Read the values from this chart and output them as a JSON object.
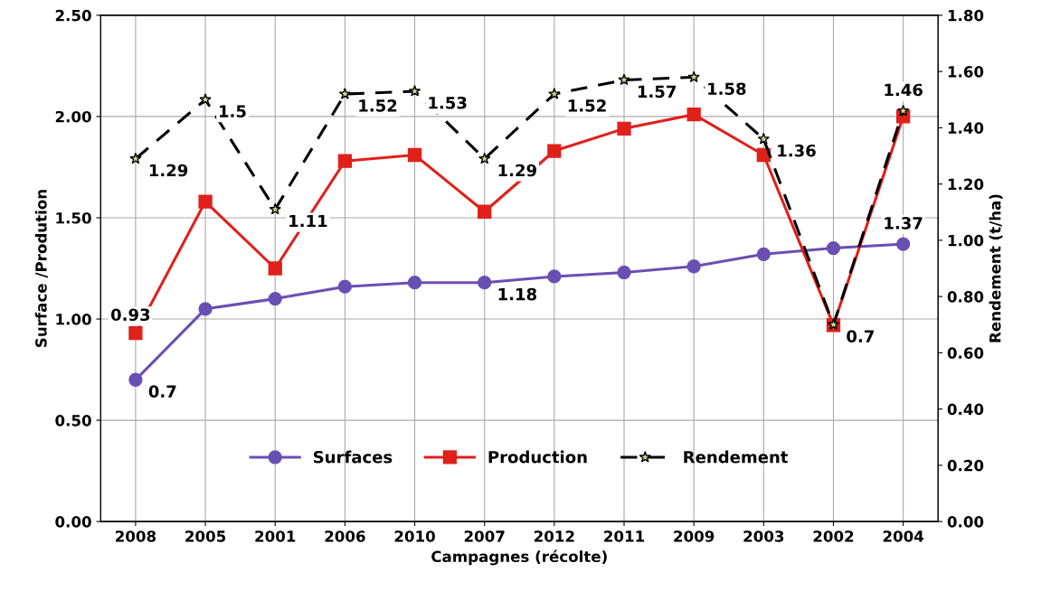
{
  "chart_data": {
    "type": "line",
    "xlabel": "Campagnes (récolte)",
    "ylabel": "Surface /Prodution",
    "y2label": "Rendement (t/ha)",
    "categories": [
      "2008",
      "2005",
      "2001",
      "2006",
      "2010",
      "2007",
      "2012",
      "2011",
      "2009",
      "2003",
      "2002",
      "2004"
    ],
    "series": [
      {
        "name": "Surfaces",
        "color": "#6a4fb3",
        "marker": "circle",
        "line_style": "solid",
        "values": [
          0.7,
          1.05,
          1.1,
          1.16,
          1.18,
          1.18,
          1.21,
          1.23,
          1.26,
          1.32,
          1.35,
          1.37
        ],
        "value_labels": [
          "0.7",
          null,
          null,
          null,
          null,
          "1.18",
          null,
          null,
          null,
          null,
          null,
          "1.37"
        ]
      },
      {
        "name": "Production",
        "color": "#e0201b",
        "marker": "square",
        "line_style": "solid",
        "values": [
          0.93,
          1.58,
          1.25,
          1.78,
          1.81,
          1.53,
          1.83,
          1.94,
          2.01,
          1.81,
          0.97,
          2.0
        ],
        "value_labels": [
          "0.93",
          null,
          null,
          null,
          null,
          null,
          null,
          null,
          null,
          null,
          null,
          null
        ]
      },
      {
        "name": "Rendement",
        "color": "#000000",
        "marker": "star",
        "line_style": "dashed",
        "axis": "y2",
        "values": [
          1.29,
          1.5,
          1.11,
          1.52,
          1.53,
          1.29,
          1.52,
          1.57,
          1.58,
          1.36,
          0.7,
          1.46
        ],
        "data_labels": true
      }
    ],
    "ylim": [
      0,
      2.5
    ],
    "yticks": [
      {
        "value": 0,
        "label": "0.00"
      },
      {
        "value": 0.5,
        "label": "0.50"
      },
      {
        "value": 1.0,
        "label": "1.00"
      },
      {
        "value": 1.5,
        "label": "1.50"
      },
      {
        "value": 2.0,
        "label": "2.00"
      },
      {
        "value": 2.5,
        "label": "2.50"
      }
    ],
    "y2lim": [
      0,
      1.8
    ],
    "y2ticks": [
      {
        "value": 0,
        "label": "0.00"
      },
      {
        "value": 0.2,
        "label": "0.20"
      },
      {
        "value": 0.4,
        "label": "0.40"
      },
      {
        "value": 0.6,
        "label": "0.60"
      },
      {
        "value": 0.8,
        "label": "0.80"
      },
      {
        "value": 1.0,
        "label": "1.00"
      },
      {
        "value": 1.2,
        "label": "1.20"
      },
      {
        "value": 1.4,
        "label": "1.40"
      },
      {
        "value": 1.6,
        "label": "1.60"
      },
      {
        "value": 1.8,
        "label": "1.80"
      }
    ],
    "grid": true,
    "legend": "bottom"
  }
}
